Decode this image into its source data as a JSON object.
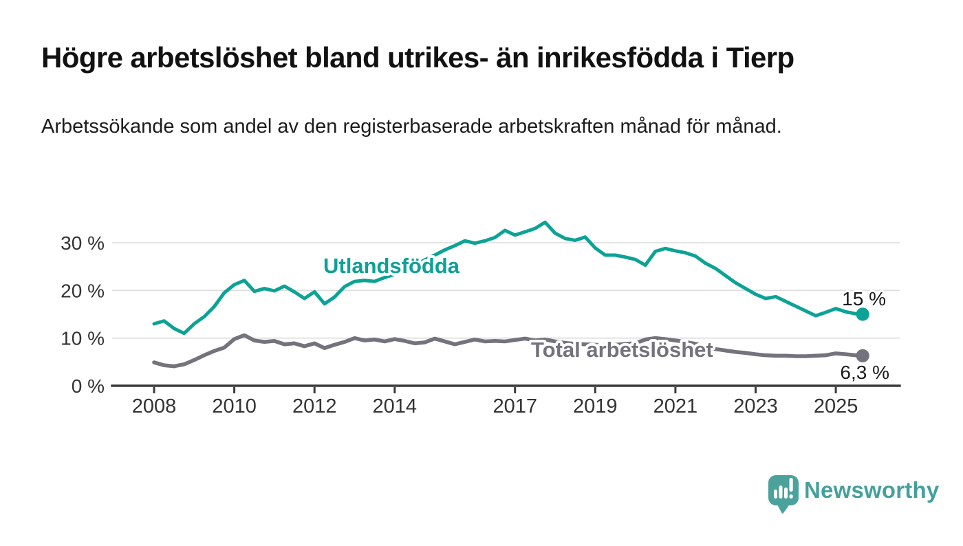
{
  "header": {
    "title": "Högre arbetslöshet bland utrikes- än inrikesfödda i Tierp",
    "subtitle": "Arbetssökande som andel av den registerbaserade arbetskraften månad för månad."
  },
  "branding": {
    "name": "Newsworthy",
    "logo_icon": "bar-chart-speech-bubble",
    "logo_color": "#45a09b"
  },
  "colors": {
    "background": "#ffffff",
    "title_text": "#111111",
    "grid": "#dcdcdc",
    "axis": "#3a3a3a",
    "axis_text": "#333333",
    "annotation_text": "#1a1a1a",
    "halo": "#ffffff",
    "series_foreign_born": "#0ca296",
    "series_total": "#74737d"
  },
  "chart_data": {
    "type": "line",
    "x_unit": "year (monthly observations)",
    "x": [
      2008.0,
      2008.25,
      2008.5,
      2008.75,
      2009.0,
      2009.25,
      2009.5,
      2009.75,
      2010.0,
      2010.25,
      2010.5,
      2010.75,
      2011.0,
      2011.25,
      2011.5,
      2011.75,
      2012.0,
      2012.25,
      2012.5,
      2012.75,
      2013.0,
      2013.25,
      2013.5,
      2013.75,
      2014.0,
      2014.25,
      2014.5,
      2014.75,
      2015.0,
      2015.25,
      2015.5,
      2015.75,
      2016.0,
      2016.25,
      2016.5,
      2016.75,
      2017.0,
      2017.25,
      2017.5,
      2017.75,
      2018.0,
      2018.25,
      2018.5,
      2018.75,
      2019.0,
      2019.25,
      2019.5,
      2019.75,
      2020.0,
      2020.25,
      2020.5,
      2020.75,
      2021.0,
      2021.25,
      2021.5,
      2021.75,
      2022.0,
      2022.25,
      2022.5,
      2022.75,
      2023.0,
      2023.25,
      2023.5,
      2023.75,
      2024.0,
      2024.25,
      2024.5,
      2024.75,
      2025.0,
      2025.25,
      2025.5,
      2025.67
    ],
    "series": [
      {
        "name": "Total arbetslöshet",
        "slug": "total-arbetsloshet",
        "color": "#74737d",
        "end_label": "6,3 %",
        "end_value": 6.3,
        "values": [
          4.9,
          4.3,
          4.1,
          4.5,
          5.4,
          6.4,
          7.3,
          8.0,
          9.8,
          10.6,
          9.5,
          9.2,
          9.4,
          8.7,
          8.9,
          8.3,
          8.9,
          7.9,
          8.6,
          9.2,
          10.0,
          9.5,
          9.7,
          9.3,
          9.8,
          9.4,
          8.9,
          9.1,
          9.9,
          9.3,
          8.7,
          9.2,
          9.7,
          9.3,
          9.4,
          9.3,
          9.6,
          9.9,
          9.5,
          9.7,
          9.3,
          9.0,
          8.8,
          8.7,
          8.6,
          8.5,
          8.6,
          8.8,
          8.9,
          9.7,
          10.0,
          9.8,
          9.5,
          9.2,
          8.8,
          8.2,
          7.7,
          7.4,
          7.1,
          6.9,
          6.6,
          6.4,
          6.3,
          6.3,
          6.2,
          6.2,
          6.3,
          6.4,
          6.8,
          6.6,
          6.4,
          6.3
        ]
      },
      {
        "name": "Utlandsfödda",
        "slug": "utlandsfodda",
        "color": "#0ca296",
        "end_label": "15 %",
        "end_value": 15,
        "values": [
          13.0,
          13.6,
          12.0,
          11.0,
          13.0,
          14.5,
          16.6,
          19.5,
          21.2,
          22.1,
          19.8,
          20.4,
          19.9,
          20.9,
          19.7,
          18.3,
          19.7,
          17.2,
          18.6,
          20.8,
          21.9,
          22.1,
          21.9,
          22.7,
          23.4,
          24.4,
          25.3,
          26.4,
          27.4,
          28.5,
          29.4,
          30.4,
          29.9,
          30.4,
          31.1,
          32.6,
          31.6,
          32.3,
          33.0,
          34.3,
          32.0,
          30.9,
          30.5,
          31.2,
          28.9,
          27.4,
          27.4,
          27.0,
          26.5,
          25.3,
          28.2,
          28.8,
          28.3,
          27.9,
          27.2,
          25.7,
          24.6,
          23.1,
          21.6,
          20.4,
          19.2,
          18.3,
          18.7,
          17.7,
          16.7,
          15.7,
          14.7,
          15.4,
          16.2,
          15.5,
          15.1,
          15.0
        ]
      }
    ],
    "title": "Högre arbetslöshet bland utrikes- än inrikesfödda i Tierp",
    "xlabel": "",
    "ylabel": "",
    "x_ticks": [
      {
        "value": 2008,
        "label": "2008"
      },
      {
        "value": 2010,
        "label": "2010"
      },
      {
        "value": 2012,
        "label": "2012"
      },
      {
        "value": 2014,
        "label": "2014"
      },
      {
        "value": 2017,
        "label": "2017"
      },
      {
        "value": 2019,
        "label": "2019"
      },
      {
        "value": 2021,
        "label": "2021"
      },
      {
        "value": 2023,
        "label": "2023"
      },
      {
        "value": 2025,
        "label": "2025"
      }
    ],
    "y_ticks": [
      {
        "value": 0,
        "label": "0 %"
      },
      {
        "value": 10,
        "label": "10 %"
      },
      {
        "value": 20,
        "label": "20 %"
      },
      {
        "value": 30,
        "label": "30 %"
      }
    ],
    "xlim": [
      2007.0,
      2026.6
    ],
    "ylim": [
      0,
      36
    ],
    "grid": "horizontal",
    "legend_position": "inline-labels"
  }
}
